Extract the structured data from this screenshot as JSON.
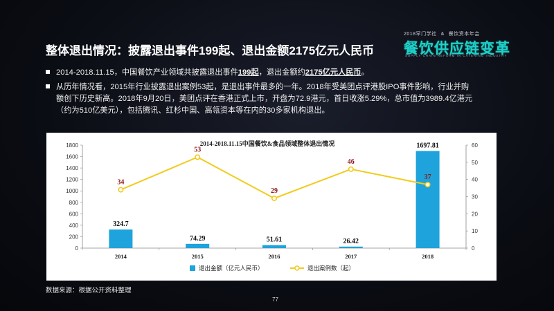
{
  "header": {
    "note_left": "2018罕门学社",
    "note_sep": "&",
    "note_right": "餐饮资本年会",
    "logo_text": "餐饮供应链变革",
    "logo_sub": "SUPPLY CHAIN REFORM IN CATERING INDUSTRY"
  },
  "slide": {
    "title": "整体退出情况：披露退出事件199起、退出金额2175亿元人民币",
    "bullet1": {
      "a": "2014-2018.11.15，中国餐饮产业领域共披露退出事件",
      "b": "199起",
      "c": "，退出金额约",
      "d": "2175亿元人民币",
      "e": "。"
    },
    "bullet2_line1": "从历年情况看，2015年行业披露退出案例53起，是退出事件最多的一年。2018年受美团点评港股IPO事件影响，行业并购",
    "bullet2_line2": "额创下历史新高。2018年9月20日，美团点评在香港正式上市，开盘为72.9港元，首日收涨5.29%，总市值为3989.4亿港元",
    "bullet2_line3": "（约为510亿美元），包括腾讯、红杉中国、高瓴资本等在内的30多家机构退出。",
    "source": "数据来源：根据公开资料整理",
    "page_number": "77"
  },
  "chart_data": {
    "type": "bar",
    "title": "2014-2018.11.15中国餐饮&食品领域整体退出情况",
    "categories": [
      "2014",
      "2015",
      "2016",
      "2017",
      "2018"
    ],
    "series": [
      {
        "name": "退出金额（亿元人民币）",
        "type": "bar",
        "axis": "left",
        "values": [
          324.7,
          74.29,
          51.61,
          26.42,
          1697.81
        ],
        "color": "#1ea3dc"
      },
      {
        "name": "退出案例数（起）",
        "type": "line",
        "axis": "right",
        "values": [
          34,
          53,
          29,
          46,
          37
        ],
        "color": "#f2cb1d"
      }
    ],
    "bar_labels": [
      "324.7",
      "74.29",
      "51.61",
      "26.42",
      "1697.81"
    ],
    "line_labels": [
      "34",
      "53",
      "29",
      "46",
      "37"
    ],
    "y_left": {
      "min": 0,
      "max": 1800,
      "ticks": [
        "0",
        "200",
        "400",
        "600",
        "800",
        "1000",
        "1200",
        "1400",
        "1600",
        "1800"
      ]
    },
    "y_right": {
      "min": 0,
      "max": 60,
      "ticks": [
        "0",
        "10",
        "20",
        "30",
        "40",
        "50",
        "60"
      ]
    },
    "legend_position": "bottom",
    "grid": false
  }
}
